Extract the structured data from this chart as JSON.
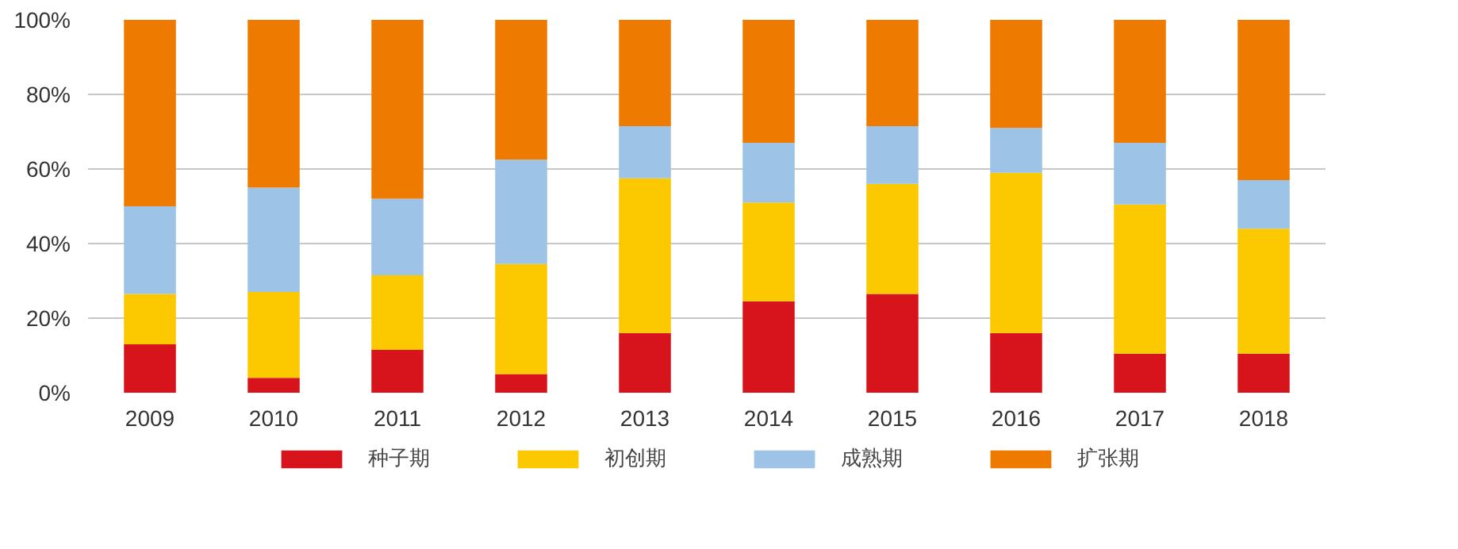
{
  "chart_data": {
    "type": "bar",
    "stacked": true,
    "categories": [
      "2009",
      "2010",
      "2011",
      "2012",
      "2013",
      "2014",
      "2015",
      "2016",
      "2017",
      "2018"
    ],
    "series": [
      {
        "name": "种子期",
        "color": "#d7141b",
        "values": [
          13,
          4,
          11.5,
          5,
          16,
          24.5,
          26.5,
          16,
          10.5,
          10.5
        ]
      },
      {
        "name": "初创期",
        "color": "#fcc800",
        "values": [
          13.5,
          23,
          20,
          29.5,
          41.5,
          26.5,
          29.5,
          43,
          40,
          33.5
        ]
      },
      {
        "name": "成熟期",
        "color": "#9dc3e6",
        "values": [
          23.5,
          28,
          20.5,
          28,
          14,
          16,
          15.5,
          12,
          16.5,
          13
        ]
      },
      {
        "name": "扩张期",
        "color": "#ef7a00",
        "values": [
          50,
          45,
          48,
          37.5,
          28.5,
          33,
          28.5,
          29,
          33,
          43
        ]
      }
    ],
    "ylim": [
      0,
      100
    ],
    "yticks": [
      {
        "value": 0,
        "label": "0%"
      },
      {
        "value": 20,
        "label": "20%"
      },
      {
        "value": 40,
        "label": "40%"
      },
      {
        "value": 60,
        "label": "60%"
      },
      {
        "value": 80,
        "label": "80%"
      },
      {
        "value": 100,
        "label": "100%"
      }
    ],
    "grid": "y",
    "legend": "bottom"
  }
}
